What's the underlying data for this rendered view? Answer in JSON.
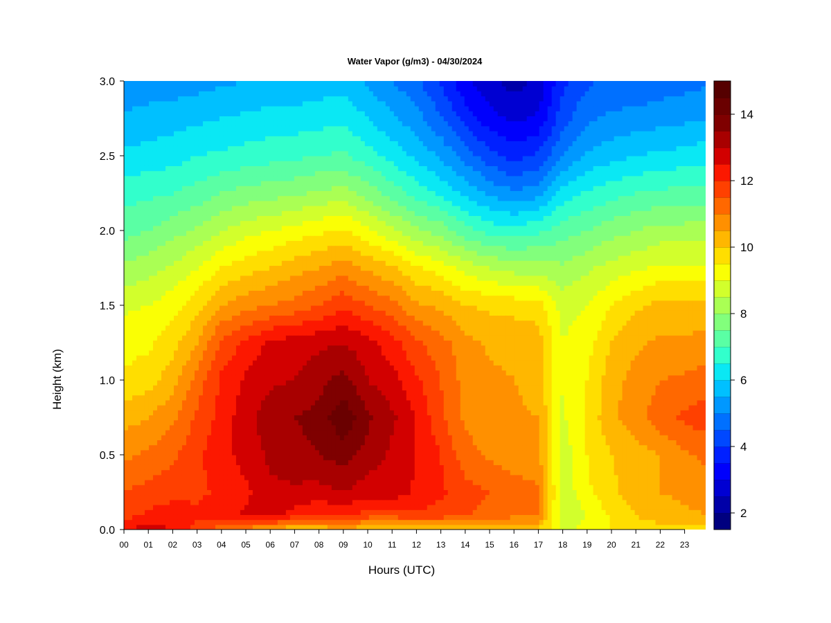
{
  "chart_data": {
    "type": "heatmap",
    "title": "Water Vapor (g/m3) - 04/30/2024",
    "xlabel": "Hours (UTC)",
    "ylabel": "Height (km)",
    "x_tick_labels": [
      "00",
      "01",
      "02",
      "03",
      "04",
      "05",
      "06",
      "07",
      "08",
      "09",
      "10",
      "11",
      "12",
      "13",
      "14",
      "15",
      "16",
      "17",
      "18",
      "19",
      "20",
      "21",
      "22",
      "23"
    ],
    "x_ticks": [
      0,
      1,
      2,
      3,
      4,
      5,
      6,
      7,
      8,
      9,
      10,
      11,
      12,
      13,
      14,
      15,
      16,
      17,
      18,
      19,
      20,
      21,
      22,
      23
    ],
    "xlim": [
      0,
      23.85
    ],
    "y_tick_labels": [
      "0.0",
      "0.5",
      "1.0",
      "1.5",
      "2.0",
      "2.5",
      "3.0"
    ],
    "y_ticks": [
      0.0,
      0.5,
      1.0,
      1.5,
      2.0,
      2.5,
      3.0
    ],
    "ylim": [
      0.0,
      3.0
    ],
    "colorbar": {
      "min": 1.5,
      "max": 15.0,
      "step": 0.5,
      "tick_labels": [
        "2",
        "4",
        "6",
        "8",
        "10",
        "12",
        "14"
      ],
      "ticks": [
        2,
        4,
        6,
        8,
        10,
        12,
        14
      ],
      "colors": [
        "#00007f",
        "#0000a8",
        "#0000d2",
        "#0000fc",
        "#0020ff",
        "#0048ff",
        "#0070ff",
        "#0098ff",
        "#00c0ff",
        "#0ae8f4",
        "#32ffcc",
        "#5affa4",
        "#82ff7c",
        "#aaff54",
        "#d2ff2c",
        "#faff04",
        "#ffde00",
        "#ffb700",
        "#ff9000",
        "#ff6800",
        "#ff4000",
        "#fc1800",
        "#d20000",
        "#a80000",
        "#7f0000",
        "#6a0000",
        "#550000"
      ]
    },
    "grid": false,
    "legend_position": "right",
    "hours": [
      0,
      1,
      2,
      3,
      4,
      5,
      6,
      7,
      8,
      9,
      10,
      11,
      12,
      13,
      14,
      15,
      16,
      17,
      18,
      19,
      20,
      21,
      22,
      23,
      23.85
    ],
    "heights": [
      0.0,
      0.1,
      0.25,
      0.5,
      0.75,
      1.0,
      1.25,
      1.5,
      1.75,
      2.0,
      2.25,
      2.5,
      2.75,
      3.0
    ],
    "values": [
      [
        12.5,
        11.8,
        11.5,
        10.9,
        10.3,
        9.6,
        9.3,
        8.9,
        8.1,
        7.3,
        6.8,
        6.1,
        5.6,
        5.1
      ],
      [
        12.7,
        12.1,
        11.7,
        11.1,
        10.5,
        9.8,
        9.4,
        9.0,
        8.3,
        7.5,
        6.9,
        6.2,
        5.7,
        5.2
      ],
      [
        12.5,
        12.3,
        11.8,
        11.4,
        10.9,
        10.3,
        9.8,
        9.3,
        8.6,
        7.8,
        7.0,
        6.3,
        5.8,
        5.2
      ],
      [
        11.8,
        12.1,
        11.9,
        11.9,
        11.6,
        11.2,
        10.5,
        9.8,
        9.0,
        8.1,
        7.2,
        6.5,
        5.9,
        5.3
      ],
      [
        11.2,
        12.3,
        12.1,
        12.3,
        12.2,
        12.1,
        11.6,
        10.5,
        9.5,
        8.5,
        7.5,
        6.6,
        6.0,
        5.4
      ],
      [
        10.8,
        12.6,
        12.4,
        12.7,
        12.8,
        12.6,
        12.1,
        10.8,
        9.8,
        8.8,
        7.7,
        6.7,
        6.1,
        5.5
      ],
      [
        10.4,
        12.8,
        12.9,
        13.1,
        13.3,
        12.9,
        12.6,
        11.0,
        10.0,
        9.0,
        7.8,
        6.8,
        6.2,
        5.6
      ],
      [
        10.0,
        12.3,
        12.9,
        13.3,
        13.5,
        13.0,
        12.8,
        11.2,
        10.3,
        9.2,
        7.9,
        6.9,
        6.2,
        5.6
      ],
      [
        10.1,
        12.0,
        12.8,
        13.5,
        13.7,
        13.3,
        12.9,
        11.5,
        10.5,
        9.4,
        8.1,
        7.0,
        6.3,
        5.7
      ],
      [
        10.4,
        12.2,
        13.0,
        13.7,
        14.4,
        13.7,
        13.0,
        11.9,
        10.8,
        9.6,
        8.2,
        7.1,
        6.4,
        5.8
      ],
      [
        10.0,
        11.8,
        12.7,
        13.3,
        13.6,
        13.0,
        12.7,
        11.5,
        10.4,
        9.1,
        7.8,
        6.7,
        6.0,
        5.4
      ],
      [
        9.8,
        11.8,
        12.8,
        12.9,
        13.1,
        12.7,
        12.2,
        11.2,
        10.1,
        8.6,
        7.3,
        6.3,
        5.6,
        5.0
      ],
      [
        10.0,
        11.9,
        12.4,
        12.5,
        12.5,
        12.1,
        11.6,
        10.6,
        9.6,
        8.1,
        6.8,
        5.9,
        5.2,
        4.6
      ],
      [
        10.2,
        11.8,
        12.1,
        12.0,
        11.6,
        11.5,
        11.2,
        10.4,
        9.3,
        7.8,
        6.4,
        5.4,
        4.6,
        3.9
      ],
      [
        10.1,
        11.6,
        11.7,
        11.2,
        10.9,
        10.8,
        10.7,
        10.0,
        8.8,
        7.2,
        5.9,
        4.8,
        3.8,
        3.1
      ],
      [
        10.0,
        11.3,
        11.5,
        10.9,
        10.7,
        10.6,
        10.4,
        9.9,
        8.5,
        6.8,
        5.4,
        4.2,
        3.2,
        2.6
      ],
      [
        9.9,
        11.2,
        11.3,
        10.7,
        10.6,
        10.5,
        10.4,
        9.8,
        8.3,
        6.7,
        5.1,
        3.8,
        2.9,
        2.3
      ],
      [
        9.9,
        11.1,
        11.1,
        10.6,
        10.5,
        10.3,
        10.3,
        9.7,
        8.3,
        6.9,
        5.3,
        4.1,
        3.1,
        2.6
      ],
      [
        8.9,
        8.5,
        8.6,
        8.7,
        8.9,
        9.0,
        9.0,
        8.8,
        8.1,
        7.3,
        6.2,
        5.0,
        4.3,
        3.9
      ],
      [
        9.2,
        9.0,
        9.4,
        9.5,
        9.6,
        9.5,
        9.3,
        9.0,
        8.4,
        7.5,
        6.6,
        5.6,
        4.9,
        4.4
      ],
      [
        9.5,
        9.6,
        9.9,
        10.0,
        10.4,
        10.3,
        10.0,
        9.5,
        8.7,
        7.8,
        6.8,
        5.8,
        5.1,
        4.6
      ],
      [
        9.7,
        10.0,
        10.2,
        10.3,
        10.8,
        10.7,
        10.4,
        9.9,
        8.9,
        8.0,
        7.0,
        6.0,
        5.2,
        4.6
      ],
      [
        9.8,
        10.3,
        10.5,
        10.5,
        11.3,
        11.0,
        10.6,
        10.2,
        9.1,
        8.2,
        7.1,
        6.1,
        5.3,
        4.7
      ],
      [
        9.8,
        10.4,
        10.6,
        10.9,
        11.6,
        11.1,
        10.6,
        10.1,
        9.1,
        8.2,
        7.2,
        6.2,
        5.4,
        4.8
      ],
      [
        9.7,
        10.5,
        10.8,
        11.1,
        11.8,
        11.2,
        10.7,
        10.1,
        9.1,
        8.2,
        7.2,
        6.3,
        5.5,
        4.9
      ]
    ]
  }
}
